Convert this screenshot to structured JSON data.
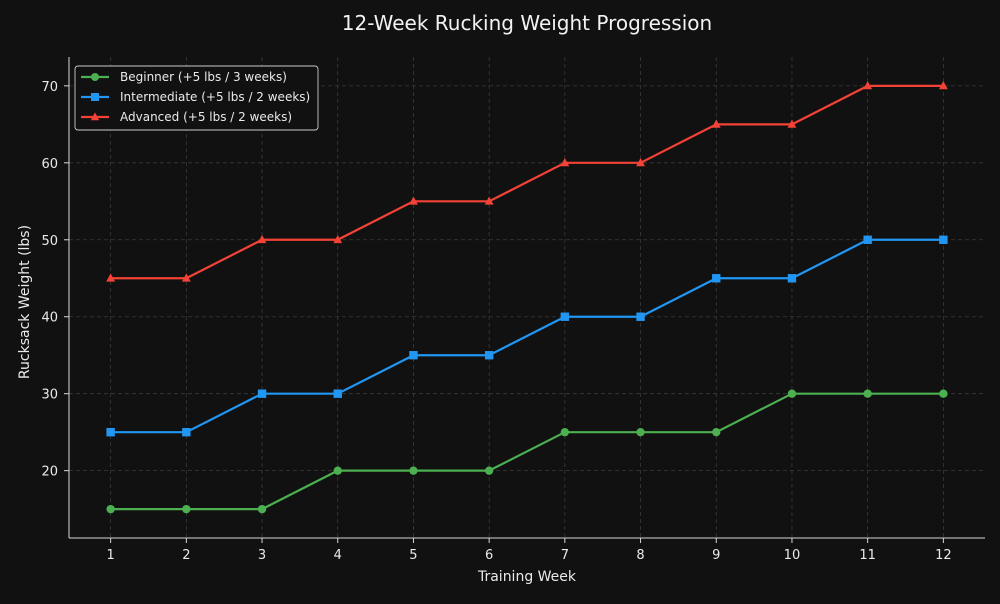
{
  "chart_data": {
    "type": "line",
    "title": "12-Week Rucking Weight Progression",
    "xlabel": "Training Week",
    "ylabel": "Rucksack Weight (lbs)",
    "x": [
      1,
      2,
      3,
      4,
      5,
      6,
      7,
      8,
      9,
      10,
      11,
      12
    ],
    "xlim": [
      0.45,
      12.55
    ],
    "ylim": [
      11.25,
      73.75
    ],
    "yticks": [
      20,
      30,
      40,
      50,
      60,
      70
    ],
    "grid": true,
    "legend_position": "top-left",
    "series": [
      {
        "name": "Beginner (+5 lbs / 3 weeks)",
        "color": "#4caf50",
        "marker": "circle",
        "values": [
          15,
          15,
          15,
          20,
          20,
          20,
          25,
          25,
          25,
          30,
          30,
          30
        ]
      },
      {
        "name": "Intermediate (+5 lbs / 2 weeks)",
        "color": "#2196f3",
        "marker": "square",
        "values": [
          25,
          25,
          30,
          30,
          35,
          35,
          40,
          40,
          45,
          45,
          50,
          50
        ]
      },
      {
        "name": "Advanced (+5 lbs / 2 weeks)",
        "color": "#f44336",
        "marker": "triangle",
        "values": [
          45,
          45,
          50,
          50,
          55,
          55,
          60,
          60,
          65,
          65,
          70,
          70
        ]
      }
    ]
  }
}
